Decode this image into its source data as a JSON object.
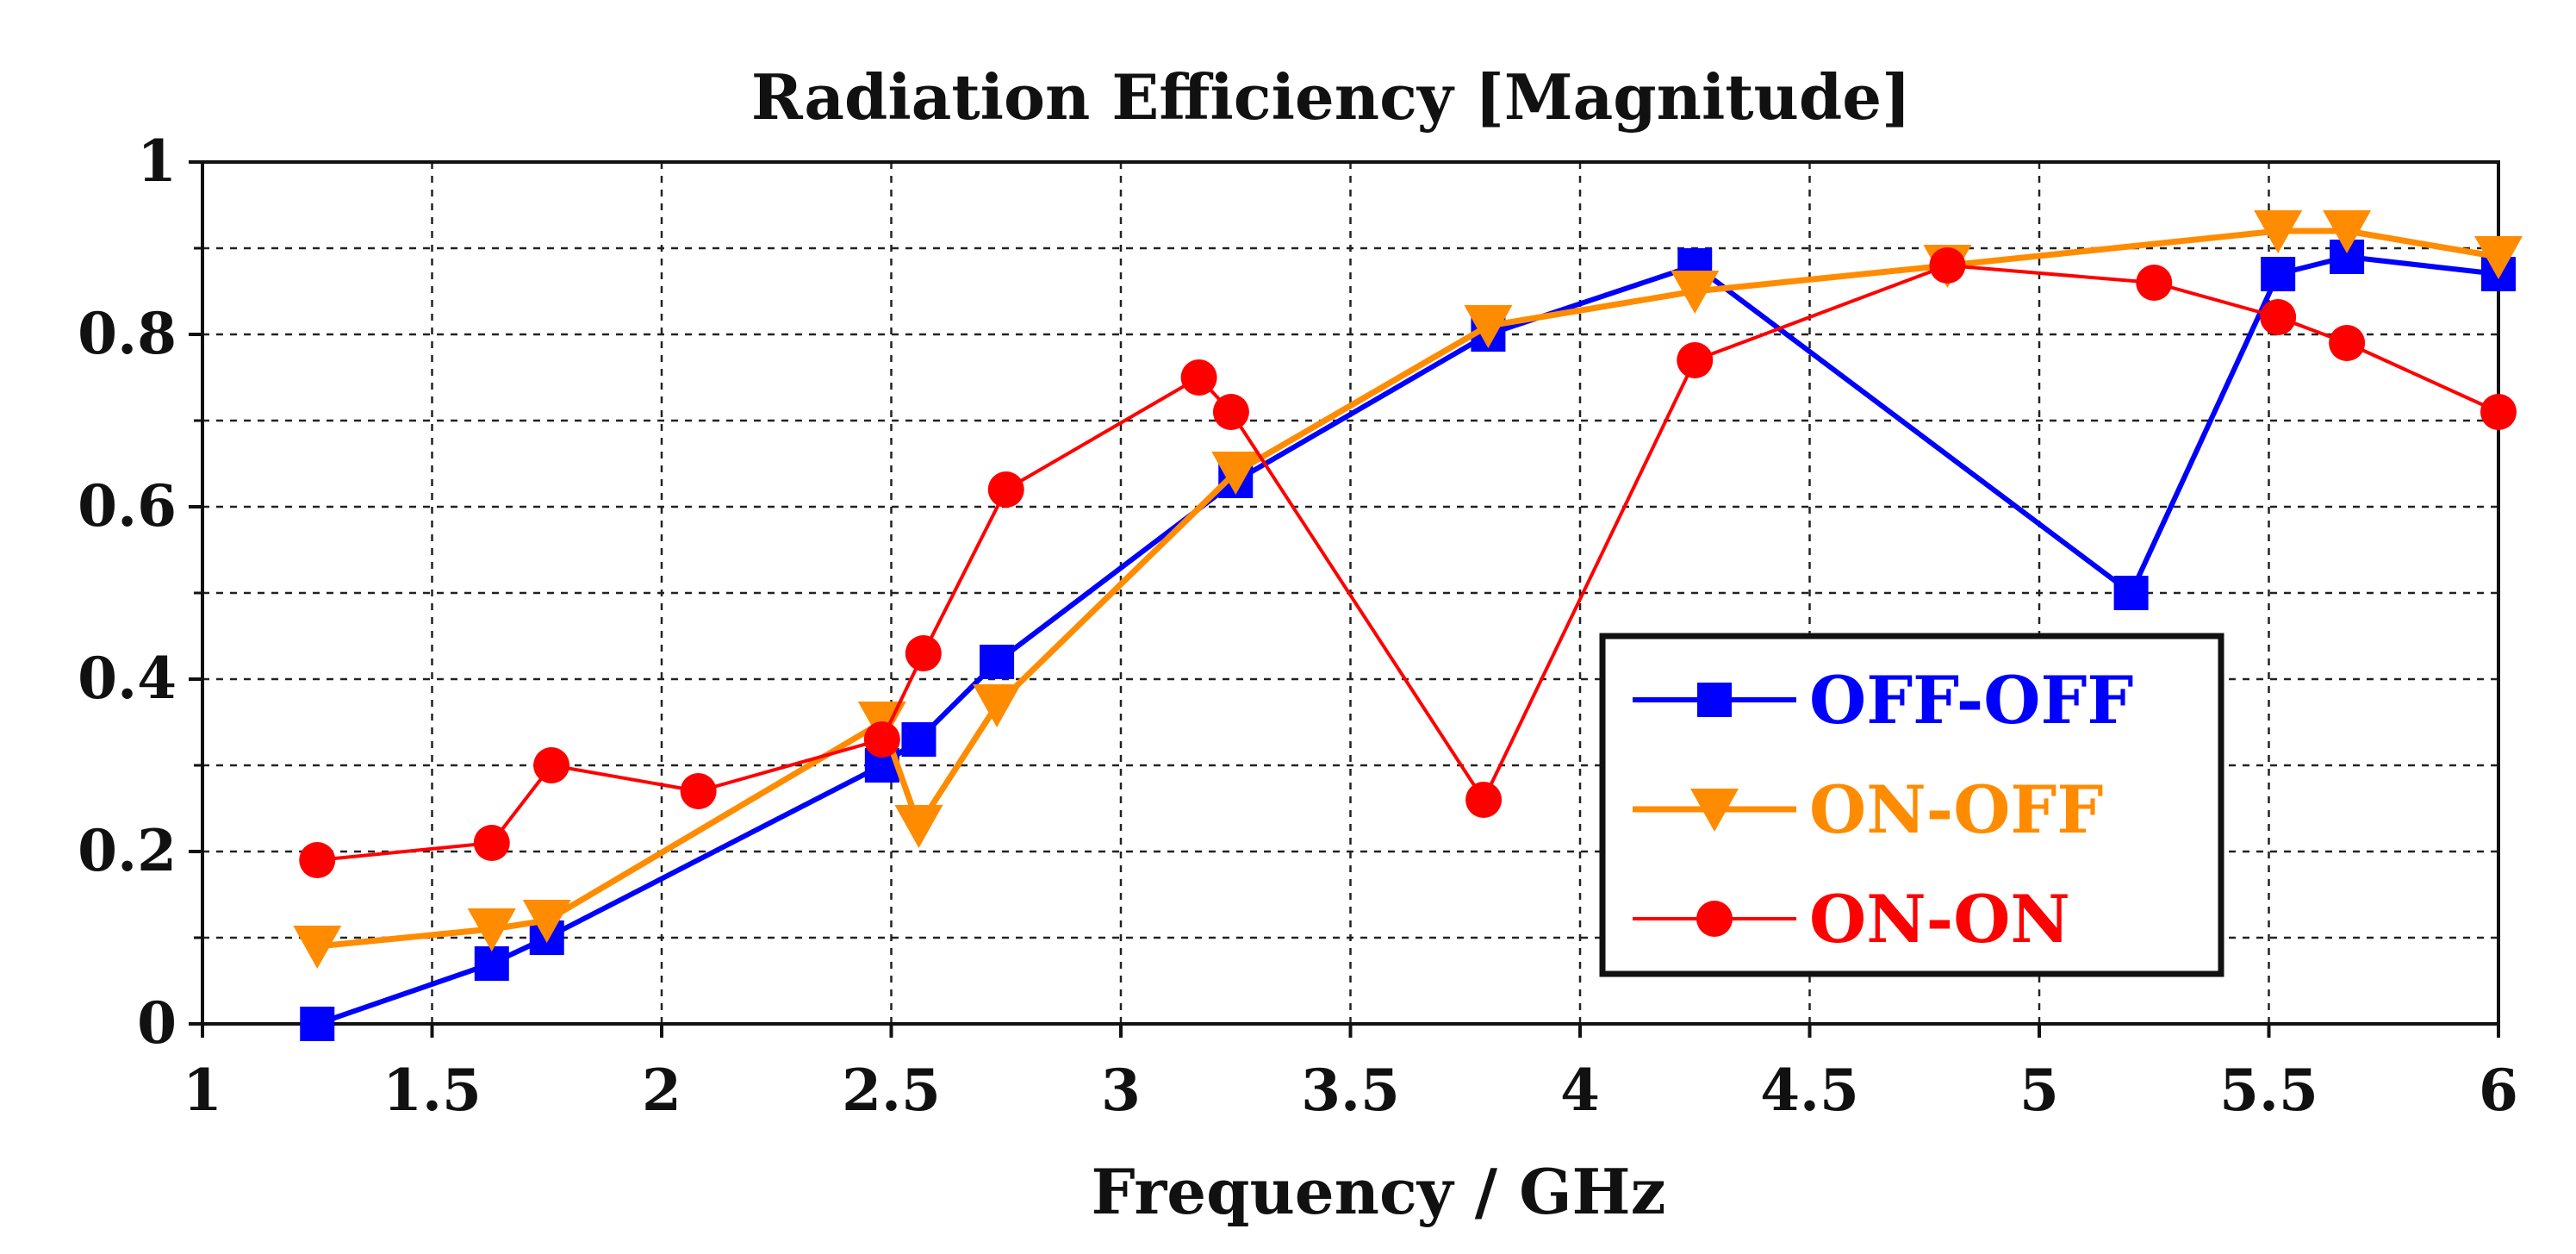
{
  "chart_data": {
    "type": "line",
    "title": "Radiation Efficiency [Magnitude]",
    "xlabel": "Frequency / GHz",
    "ylabel": "",
    "xlim": [
      1,
      6
    ],
    "ylim": [
      0,
      1
    ],
    "x_ticks": [
      "1",
      "1.5",
      "2",
      "2.5",
      "3",
      "3.5",
      "4",
      "4.5",
      "5",
      "5.5",
      "6"
    ],
    "y_ticks": [
      "0",
      "0.2",
      "0.4",
      "0.6",
      "0.8",
      "1"
    ],
    "grid": true,
    "legend_position": "bottom-right",
    "series": [
      {
        "name": "OFF-OFF",
        "color": "#0000ff",
        "marker": "square",
        "points": [
          [
            1.25,
            0.0
          ],
          [
            1.63,
            0.07
          ],
          [
            1.75,
            0.1
          ],
          [
            2.48,
            0.3
          ],
          [
            2.56,
            0.33
          ],
          [
            2.73,
            0.42
          ],
          [
            3.25,
            0.63
          ],
          [
            3.8,
            0.8
          ],
          [
            4.25,
            0.88
          ],
          [
            5.2,
            0.5
          ],
          [
            5.52,
            0.87
          ],
          [
            5.67,
            0.89
          ],
          [
            6.0,
            0.87
          ]
        ]
      },
      {
        "name": "ON-OFF",
        "color": "#ff8c00",
        "marker": "triangle-down",
        "points": [
          [
            1.25,
            0.09
          ],
          [
            1.63,
            0.11
          ],
          [
            1.75,
            0.12
          ],
          [
            2.48,
            0.35
          ],
          [
            2.56,
            0.23
          ],
          [
            2.73,
            0.37
          ],
          [
            3.25,
            0.64
          ],
          [
            3.8,
            0.81
          ],
          [
            4.25,
            0.85
          ],
          [
            4.8,
            0.88
          ],
          [
            5.52,
            0.92
          ],
          [
            5.67,
            0.92
          ],
          [
            6.0,
            0.89
          ]
        ]
      },
      {
        "name": "ON-ON",
        "color": "#ff0000",
        "marker": "circle",
        "points": [
          [
            1.25,
            0.19
          ],
          [
            1.63,
            0.21
          ],
          [
            1.76,
            0.3
          ],
          [
            2.08,
            0.27
          ],
          [
            2.48,
            0.33
          ],
          [
            2.57,
            0.43
          ],
          [
            2.75,
            0.62
          ],
          [
            3.17,
            0.75
          ],
          [
            3.24,
            0.71
          ],
          [
            3.79,
            0.26
          ],
          [
            4.25,
            0.77
          ],
          [
            4.8,
            0.88
          ],
          [
            5.25,
            0.86
          ],
          [
            5.52,
            0.82
          ],
          [
            5.67,
            0.79
          ],
          [
            6.0,
            0.71
          ]
        ]
      }
    ]
  }
}
